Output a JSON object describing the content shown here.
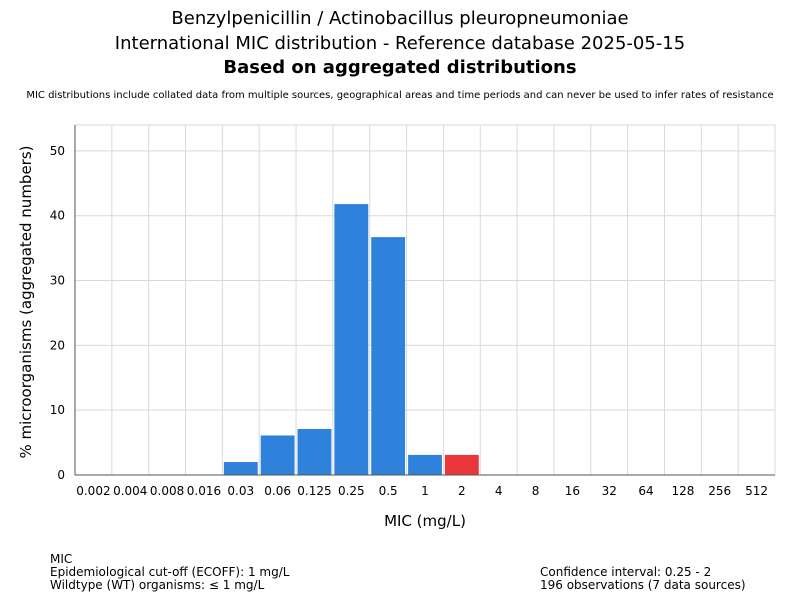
{
  "header": {
    "title_line1": "Benzylpenicillin / Actinobacillus pleuropneumoniae",
    "title_line2": "International MIC distribution - Reference database 2025-05-15",
    "title_line3": "Based on aggregated distributions",
    "disclaimer": "MIC distributions include collated data from multiple sources, geographical areas and time periods and can never be used to infer rates of resistance"
  },
  "footer": {
    "left": [
      "MIC",
      "Epidemiological cut-off (ECOFF): 1 mg/L",
      "Wildtype (WT) organisms: ≤ 1 mg/L"
    ],
    "right": [
      "Confidence interval: 0.25 - 2",
      "196 observations (7 data sources)"
    ]
  },
  "colors": {
    "wt": "#2e82dc",
    "non_wt": "#e8363a",
    "grid": "#d9d9d9",
    "axis": "#555555"
  },
  "chart_data": {
    "type": "bar",
    "title": "Benzylpenicillin / Actinobacillus pleuropneumoniae",
    "xlabel": "MIC (mg/L)",
    "ylabel": "% microorganisms (aggregated numbers)",
    "categories": [
      "0.002",
      "0.004",
      "0.008",
      "0.016",
      "0.03",
      "0.06",
      "0.125",
      "0.25",
      "0.5",
      "1",
      "2",
      "4",
      "8",
      "16",
      "32",
      "64",
      "128",
      "256",
      "512"
    ],
    "series": [
      {
        "values": [
          0,
          0,
          0,
          0,
          2.0,
          6.1,
          7.1,
          41.8,
          36.7,
          3.1,
          3.1,
          0,
          0,
          0,
          0,
          0,
          0,
          0,
          0
        ]
      }
    ],
    "ecoff_category": "1",
    "ylim": [
      0,
      54
    ],
    "yticks": [
      0,
      10,
      20,
      30,
      40,
      50
    ],
    "grid": true
  }
}
